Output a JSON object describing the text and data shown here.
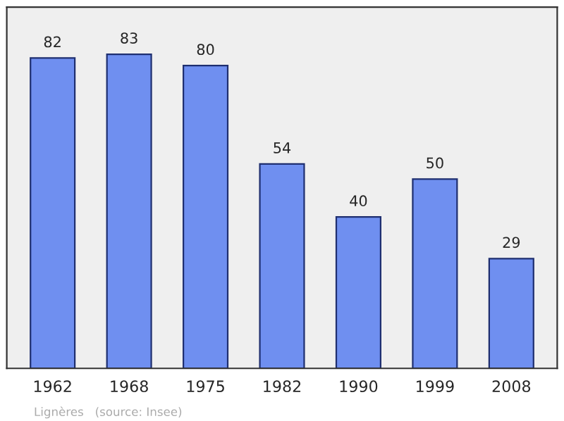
{
  "chart_data": {
    "type": "bar",
    "categories": [
      "1962",
      "1968",
      "1975",
      "1982",
      "1990",
      "1999",
      "2008"
    ],
    "values": [
      82,
      83,
      80,
      54,
      40,
      50,
      29
    ],
    "color": "#6f8ff0",
    "data_labels": true,
    "grid": false,
    "annotations": [
      "Lignères   (source: Insee)"
    ]
  }
}
